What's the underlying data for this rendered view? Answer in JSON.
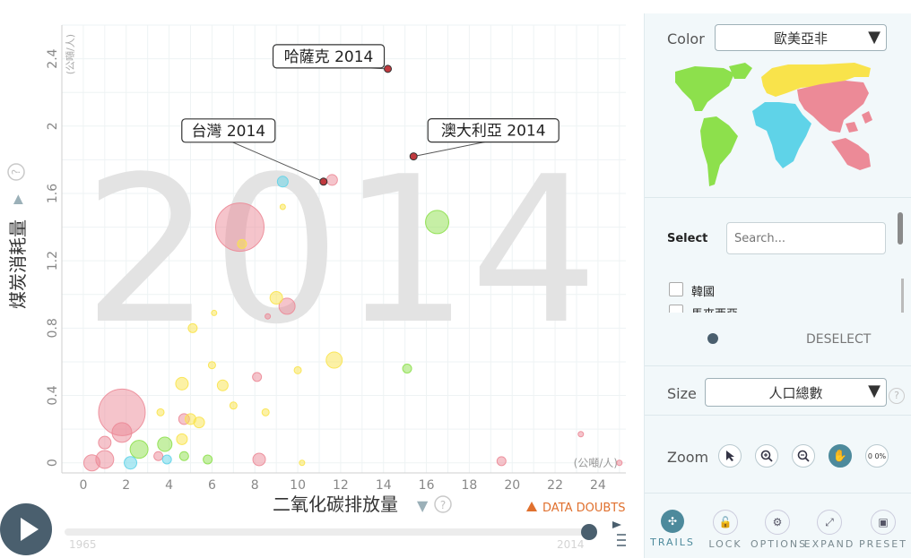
{
  "chart_data": {
    "type": "scatter",
    "year_watermark": "2014",
    "xlabel": "二氧化碳排放量",
    "ylabel": "煤炭消耗量",
    "x_unit": "(公噸/人)",
    "y_unit": "(公噸/人)",
    "xlim": [
      -1,
      25.3
    ],
    "ylim": [
      -0.06,
      2.6
    ],
    "x_ticks": [
      0,
      2,
      4,
      6,
      8,
      10,
      12,
      14,
      16,
      18,
      20,
      22,
      24
    ],
    "y_ticks": [
      0,
      0.4,
      0.8,
      1.2,
      1.6,
      2,
      2.4
    ],
    "y_tick_labels": [
      "0",
      "0.4",
      "0.8",
      "1.2",
      "1.6",
      "2",
      "2.4"
    ],
    "grid": true,
    "color_legend": {
      "asia": "#ec8a97",
      "europe": "#f9e34b",
      "americas": "#8de04c",
      "africa": "#5fd3e8"
    },
    "points": [
      {
        "x": 7.3,
        "y": 1.4,
        "r": 27,
        "c": "asia"
      },
      {
        "x": 1.8,
        "y": 0.3,
        "r": 26,
        "c": "asia"
      },
      {
        "x": 16.5,
        "y": 1.43,
        "r": 13,
        "c": "americas"
      },
      {
        "x": 11.7,
        "y": 0.61,
        "r": 9,
        "c": "europe"
      },
      {
        "x": 2.6,
        "y": 0.08,
        "r": 10,
        "c": "americas"
      },
      {
        "x": 9.5,
        "y": 0.93,
        "r": 9,
        "c": "asia"
      },
      {
        "x": 9.0,
        "y": 0.98,
        "r": 7,
        "c": "europe"
      },
      {
        "x": 1.8,
        "y": 0.18,
        "r": 11,
        "c": "asia"
      },
      {
        "x": 1.0,
        "y": 0.02,
        "r": 10,
        "c": "asia"
      },
      {
        "x": 0.4,
        "y": 0.0,
        "r": 9,
        "c": "asia"
      },
      {
        "x": 1.0,
        "y": 0.12,
        "r": 7,
        "c": "asia"
      },
      {
        "x": 2.2,
        "y": 0.0,
        "r": 7,
        "c": "africa"
      },
      {
        "x": 3.8,
        "y": 0.11,
        "r": 8,
        "c": "americas"
      },
      {
        "x": 4.6,
        "y": 0.47,
        "r": 7,
        "c": "europe"
      },
      {
        "x": 4.7,
        "y": 0.26,
        "r": 6,
        "c": "asia"
      },
      {
        "x": 5.0,
        "y": 0.26,
        "r": 6,
        "c": "europe"
      },
      {
        "x": 5.4,
        "y": 0.24,
        "r": 6,
        "c": "europe"
      },
      {
        "x": 4.6,
        "y": 0.14,
        "r": 6,
        "c": "europe"
      },
      {
        "x": 4.7,
        "y": 0.04,
        "r": 5,
        "c": "americas"
      },
      {
        "x": 3.5,
        "y": 0.04,
        "r": 5,
        "c": "asia"
      },
      {
        "x": 3.9,
        "y": 0.02,
        "r": 5,
        "c": "africa"
      },
      {
        "x": 6.5,
        "y": 0.46,
        "r": 6,
        "c": "europe"
      },
      {
        "x": 5.8,
        "y": 0.02,
        "r": 5,
        "c": "americas"
      },
      {
        "x": 8.2,
        "y": 0.02,
        "r": 7,
        "c": "asia"
      },
      {
        "x": 19.5,
        "y": 0.01,
        "r": 5,
        "c": "asia"
      },
      {
        "x": 15.1,
        "y": 0.56,
        "r": 5,
        "c": "americas"
      },
      {
        "x": 8.1,
        "y": 0.51,
        "r": 5,
        "c": "asia"
      },
      {
        "x": 5.1,
        "y": 0.8,
        "r": 5,
        "c": "europe"
      },
      {
        "x": 7.4,
        "y": 1.3,
        "r": 5,
        "c": "europe"
      },
      {
        "x": 9.3,
        "y": 1.67,
        "r": 6,
        "c": "africa"
      },
      {
        "x": 11.6,
        "y": 1.68,
        "r": 6,
        "c": "asia"
      },
      {
        "x": 3.6,
        "y": 0.3,
        "r": 4,
        "c": "europe"
      },
      {
        "x": 6.0,
        "y": 0.58,
        "r": 4,
        "c": "europe"
      },
      {
        "x": 10.0,
        "y": 0.55,
        "r": 4,
        "c": "europe"
      },
      {
        "x": 7.0,
        "y": 0.34,
        "r": 4,
        "c": "europe"
      },
      {
        "x": 8.5,
        "y": 0.3,
        "r": 4,
        "c": "europe"
      },
      {
        "x": 9.3,
        "y": 1.52,
        "r": 3,
        "c": "europe"
      },
      {
        "x": 10.2,
        "y": 0.0,
        "r": 3,
        "c": "europe"
      },
      {
        "x": 23.2,
        "y": 0.17,
        "r": 3,
        "c": "asia"
      },
      {
        "x": 25.0,
        "y": 0.0,
        "r": 3,
        "c": "asia"
      },
      {
        "x": 6.1,
        "y": 0.89,
        "r": 3,
        "c": "europe"
      },
      {
        "x": 8.6,
        "y": 0.87,
        "r": 3,
        "c": "asia"
      }
    ],
    "highlighted": [
      {
        "label": "哈薩克 2014",
        "x": 14.2,
        "y": 2.34
      },
      {
        "label": "台灣 2014",
        "x": 11.2,
        "y": 1.67
      },
      {
        "label": "澳大利亞 2014",
        "x": 15.4,
        "y": 1.82
      }
    ]
  },
  "controls": {
    "data_doubts": "DATA DOUBTS",
    "slider_start": "1965",
    "slider_end": "2014",
    "help": "?"
  },
  "sidebar": {
    "color_label": "Color",
    "color_value": "歐美亞非",
    "select_label": "Select",
    "search_placeholder": "Search...",
    "items": [
      "韓國",
      "馬來西亞"
    ],
    "deselect": "DESELECT",
    "size_label": "Size",
    "size_value": "人口總數",
    "zoom_label": "Zoom",
    "zoom_value": "0 0%",
    "tools": [
      "TRAILS",
      "LOCK",
      "OPTIONS",
      "EXPAND",
      "PRESET"
    ]
  }
}
